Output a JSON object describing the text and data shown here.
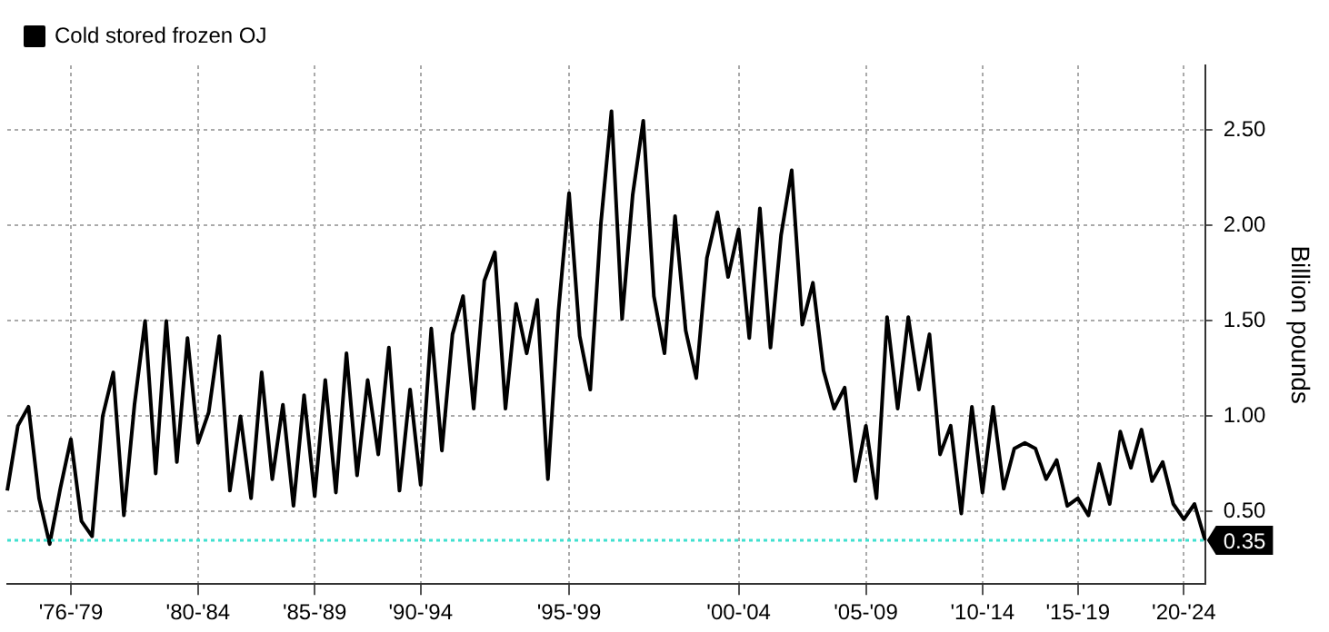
{
  "chart_data": {
    "type": "line",
    "ylabel": "Billion pounds",
    "legend": "top left",
    "grid": true,
    "ylim": [
      0.12,
      2.84
    ],
    "yticks": [
      {
        "value": 0.5,
        "label": "0.50"
      },
      {
        "value": 1,
        "label": "1.00"
      },
      {
        "value": 1.5,
        "label": "1.50"
      },
      {
        "value": 2,
        "label": "2.00"
      },
      {
        "value": 2.5,
        "label": "2.50"
      }
    ],
    "categories": [
      null,
      null,
      null,
      null,
      null,
      null,
      "'76-'79",
      null,
      null,
      null,
      null,
      null,
      null,
      null,
      null,
      null,
      null,
      null,
      "'80-'84",
      null,
      null,
      null,
      null,
      null,
      null,
      null,
      null,
      null,
      null,
      "'85-'89",
      null,
      null,
      null,
      null,
      null,
      null,
      null,
      null,
      null,
      "'90-'94",
      null,
      null,
      null,
      null,
      null,
      null,
      null,
      null,
      null,
      null,
      null,
      null,
      null,
      "'95-'99",
      null,
      null,
      null,
      null,
      null,
      null,
      null,
      null,
      null,
      null,
      null,
      null,
      null,
      null,
      null,
      "'00-'04",
      null,
      null,
      null,
      null,
      null,
      null,
      null,
      null,
      null,
      null,
      null,
      "'05-'09",
      null,
      null,
      null,
      null,
      null,
      null,
      null,
      null,
      null,
      null,
      "'10-'14",
      null,
      null,
      null,
      null,
      null,
      null,
      null,
      null,
      "'15-'19",
      null,
      null,
      null,
      null,
      null,
      null,
      null,
      null,
      null,
      "'20-'24",
      null,
      null
    ],
    "ref_lines": [
      {
        "axis": "y",
        "value": 0.35,
        "label": "0.35",
        "color": "#40e0d0",
        "line_style": "dotted"
      }
    ],
    "series": [
      {
        "name": "Cold stored frozen OJ",
        "color": "#000000",
        "values": [
          0.61,
          0.95,
          1.05,
          0.57,
          0.33,
          0.62,
          0.88,
          0.45,
          0.37,
          1.0,
          1.23,
          0.48,
          1.06,
          1.5,
          0.7,
          1.5,
          0.76,
          1.41,
          0.86,
          1.02,
          1.42,
          0.61,
          1.0,
          0.57,
          1.23,
          0.67,
          1.06,
          0.53,
          1.11,
          0.58,
          1.19,
          0.6,
          1.33,
          0.69,
          1.19,
          0.8,
          1.36,
          0.61,
          1.14,
          0.64,
          1.46,
          0.82,
          1.43,
          1.63,
          1.04,
          1.71,
          1.86,
          1.04,
          1.59,
          1.33,
          1.61,
          0.67,
          1.55,
          2.17,
          1.42,
          1.14,
          2.01,
          2.6,
          1.51,
          2.16,
          2.55,
          1.63,
          1.33,
          2.05,
          1.45,
          1.2,
          1.83,
          2.07,
          1.73,
          1.98,
          1.41,
          2.09,
          1.36,
          1.95,
          2.29,
          1.48,
          1.7,
          1.24,
          1.04,
          1.15,
          0.66,
          0.95,
          0.57,
          1.52,
          1.04,
          1.52,
          1.14,
          1.43,
          0.8,
          0.95,
          0.49,
          1.05,
          0.6,
          1.05,
          0.62,
          0.83,
          0.86,
          0.83,
          0.67,
          0.77,
          0.53,
          0.57,
          0.48,
          0.75,
          0.54,
          0.92,
          0.73,
          0.93,
          0.66,
          0.76,
          0.54,
          0.46,
          0.54,
          0.35
        ]
      }
    ]
  }
}
